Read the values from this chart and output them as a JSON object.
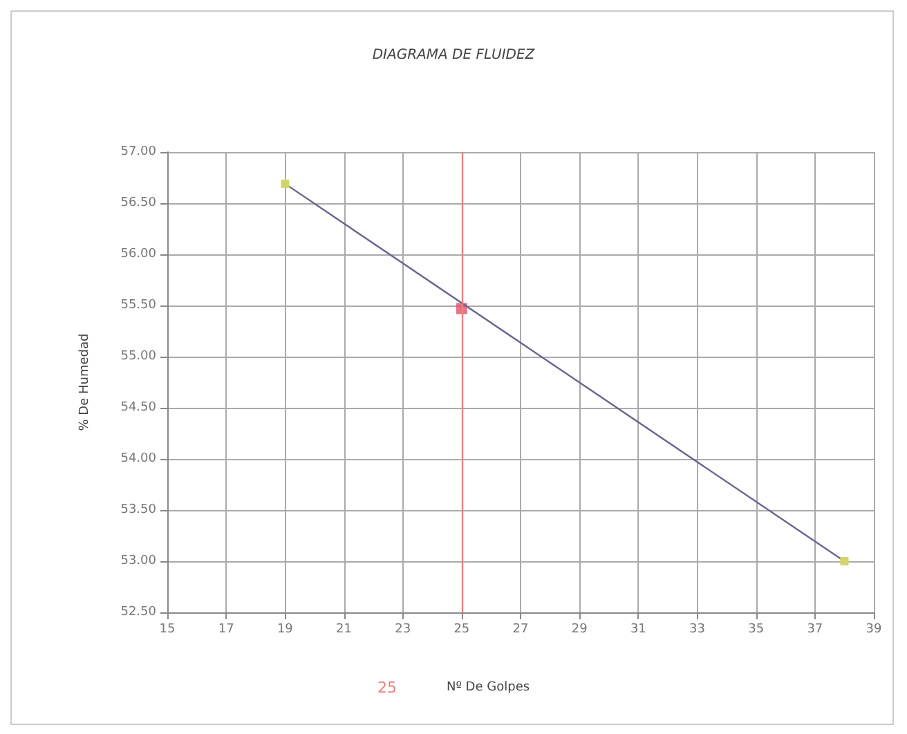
{
  "chart_data": {
    "type": "line",
    "title": "DIAGRAMA DE FLUIDEZ",
    "xlabel": "Nº De Golpes",
    "ylabel": "% De Humedad",
    "xlim": [
      15,
      39
    ],
    "xticks": [
      15,
      17,
      19,
      21,
      23,
      25,
      27,
      29,
      31,
      33,
      35,
      37,
      39
    ],
    "ylim": [
      52.5,
      57
    ],
    "yticks": [
      {
        "value": 52.5,
        "label": "52.50"
      },
      {
        "value": 53,
        "label": "53.00"
      },
      {
        "value": 53.5,
        "label": "53.50"
      },
      {
        "value": 54,
        "label": "54.00"
      },
      {
        "value": 54.5,
        "label": "54.50"
      },
      {
        "value": 55,
        "label": "55.00"
      },
      {
        "value": 55.5,
        "label": "55.50"
      },
      {
        "value": 56,
        "label": "56.00"
      },
      {
        "value": 56.5,
        "label": "56.50"
      },
      {
        "value": 57,
        "label": "57.00"
      }
    ],
    "series": [
      {
        "color": "#66668f",
        "colors": [
          "#d4d46a",
          "#d4d46a"
        ],
        "x": [
          19,
          38
        ],
        "values": [
          56.69,
          53.0
        ]
      },
      {
        "type": "scatter",
        "color": "#e0506a",
        "x": [
          25
        ],
        "values": [
          55.47
        ]
      }
    ],
    "ref_lines": [
      {
        "axis": "x",
        "value": 25,
        "label": "25",
        "color": "#e88080"
      }
    ],
    "grid": true,
    "legend": false,
    "marker": "square"
  }
}
